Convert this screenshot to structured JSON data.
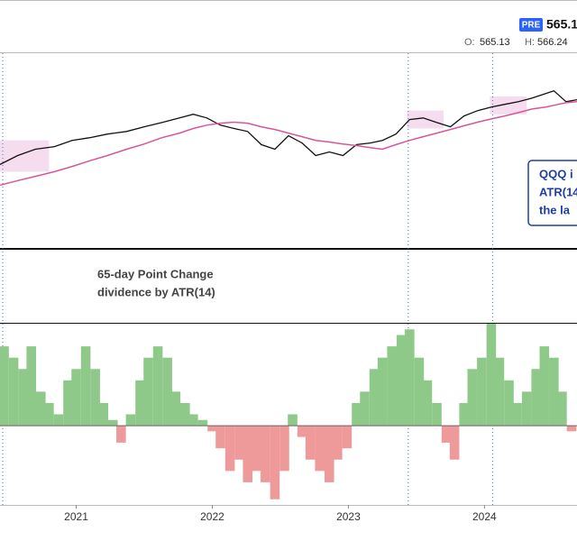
{
  "header": {
    "badge": "PRE",
    "last": "565.1",
    "open_label": "O:",
    "open": "565.13",
    "high_label": "H:",
    "high": "566.24"
  },
  "chart_data": [
    {
      "type": "line",
      "x": [
        2020.44,
        2020.57,
        2020.7,
        2020.84,
        2020.97,
        2021.1,
        2021.23,
        2021.37,
        2021.5,
        2021.63,
        2021.76,
        2021.86,
        2021.96,
        2022.06,
        2022.16,
        2022.26,
        2022.36,
        2022.46,
        2022.56,
        2022.66,
        2022.76,
        2022.86,
        2022.96,
        2023.06,
        2023.16,
        2023.25,
        2023.35,
        2023.45,
        2023.55,
        2023.65,
        2023.75,
        2023.85,
        2023.95,
        2024.05,
        2024.15,
        2024.25,
        2024.35,
        2024.45,
        2024.51,
        2024.6,
        2024.68
      ],
      "series": [
        {
          "color": "#111111",
          "values": [
            263,
            290,
            309,
            317,
            336,
            344,
            355,
            363,
            377,
            390,
            404,
            415,
            404,
            382,
            372,
            363,
            323,
            309,
            350,
            328,
            290,
            301,
            290,
            323,
            328,
            336,
            355,
            399,
            404,
            390,
            377,
            410,
            426,
            437,
            445,
            453,
            464,
            478,
            486,
            453,
            459
          ]
        },
        {
          "color": "#d9559a",
          "values": [
            200,
            214,
            227,
            241,
            257,
            274,
            290,
            309,
            325,
            344,
            358,
            372,
            382,
            388,
            391,
            388,
            377,
            369,
            358,
            347,
            336,
            331,
            325,
            320,
            314,
            309,
            323,
            336,
            347,
            358,
            369,
            380,
            391,
            401,
            410,
            420,
            431,
            437,
            442,
            450,
            453
          ]
        }
      ],
      "xlim": [
        2020.44,
        2024.68
      ],
      "ylim": [
        10,
        600
      ],
      "shaded_regions": [
        {
          "x": [
            2020.44,
            2020.8
          ],
          "y": [
            241,
            336
          ]
        },
        {
          "x": [
            2023.43,
            2023.7
          ],
          "y": [
            372,
            426
          ]
        },
        {
          "x": [
            2024.04,
            2024.31
          ],
          "y": [
            415,
            469
          ]
        }
      ],
      "shade_color": "#f6dcef",
      "event_lines": [
        2020.46,
        2023.44,
        2024.06
      ],
      "event_color": "#3a7fb0",
      "annotation_lines": [
        "QQQ i",
        "ATR(14",
        "the la"
      ]
    },
    {
      "type": "bar",
      "title_lines": [
        "65-day Point Change",
        "dividence by ATR(14)"
      ],
      "x": [
        2020.47,
        2020.54,
        2020.61,
        2020.67,
        2020.74,
        2020.8,
        2020.87,
        2020.94,
        2021.0,
        2021.07,
        2021.14,
        2021.2,
        2021.27,
        2021.33,
        2021.4,
        2021.47,
        2021.53,
        2021.6,
        2021.67,
        2021.73,
        2021.8,
        2021.86,
        2021.93,
        2022.0,
        2022.06,
        2022.13,
        2022.2,
        2022.26,
        2022.33,
        2022.39,
        2022.46,
        2022.53,
        2022.59,
        2022.66,
        2022.72,
        2022.79,
        2022.86,
        2022.92,
        2022.99,
        2023.06,
        2023.12,
        2023.19,
        2023.25,
        2023.32,
        2023.39,
        2023.45,
        2023.52,
        2023.58,
        2023.65,
        2023.72,
        2023.78,
        2023.85,
        2023.91,
        2023.98,
        2024.05,
        2024.11,
        2024.18,
        2024.24,
        2024.31,
        2024.38,
        2024.44,
        2024.51,
        2024.57,
        2024.64
      ],
      "values": [
        7,
        6,
        5,
        7,
        3,
        2,
        1,
        4,
        5,
        7,
        5,
        2,
        0.5,
        -1.5,
        1,
        4,
        6,
        7,
        6,
        3,
        2,
        1,
        0.5,
        -0.5,
        -2,
        -4,
        -3,
        -5,
        -4,
        -5,
        -6.5,
        -4,
        1,
        -1,
        -3,
        -4,
        -5,
        -3,
        -2,
        2,
        3,
        5,
        6,
        7,
        8,
        8.5,
        6,
        4,
        2,
        -1.5,
        -3,
        2,
        5,
        6,
        9,
        6,
        4,
        2,
        3,
        5,
        7,
        6,
        3,
        -0.5
      ],
      "positive_color": "#8fc98a",
      "negative_color": "#ee9a9a",
      "xlim": [
        2020.44,
        2024.68
      ],
      "ylim": [
        -7,
        9
      ],
      "xticks": [
        2021,
        2022,
        2023,
        2024
      ]
    }
  ]
}
